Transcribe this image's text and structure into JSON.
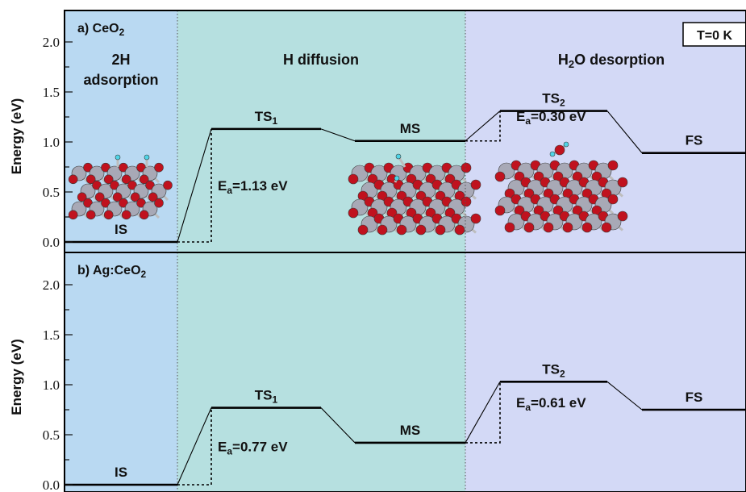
{
  "chart_data": [
    {
      "type": "line",
      "panel_label": "a) CeO",
      "panel_label_sub": "2",
      "ylabel": "Energy (eV)",
      "ylim": [
        0,
        2.15
      ],
      "yticks": [
        0.0,
        0.5,
        1.0,
        1.5,
        2.0
      ],
      "ytick_labels": [
        "0.0",
        "0.5",
        "1.0",
        "1.5",
        "2.0"
      ],
      "temperature_label": "T=0 K",
      "regions": [
        {
          "label_main": "2H",
          "label_sub": "adsorption",
          "color": "#b9d9f2"
        },
        {
          "label_main": "H diffusion",
          "color": "#b6e0e0"
        },
        {
          "label_main": "H",
          "label_sub_text": "2",
          "label_tail": "O desorption",
          "color": "#d3d9f6"
        }
      ],
      "states": [
        {
          "name": "IS",
          "sub": "",
          "energy": 0.0
        },
        {
          "name": "TS",
          "sub": "1",
          "energy": 1.13
        },
        {
          "name": "MS",
          "sub": "",
          "energy": 1.01
        },
        {
          "name": "TS",
          "sub": "2",
          "energy": 1.31
        },
        {
          "name": "FS",
          "sub": "",
          "energy": 0.89
        }
      ],
      "barriers": [
        {
          "prefix": "E",
          "sub": "a",
          "text": "=1.13 eV",
          "value": 1.13
        },
        {
          "prefix": "E",
          "sub": "a",
          "text": "=0.30 eV",
          "value": 0.3
        }
      ]
    },
    {
      "type": "line",
      "panel_label": "b) Ag:CeO",
      "panel_label_sub": "2",
      "ylabel": "Energy (eV)",
      "ylim": [
        0,
        2.15
      ],
      "yticks": [
        0.0,
        0.5,
        1.0,
        1.5,
        2.0
      ],
      "ytick_labels": [
        "0.0",
        "0.5",
        "1.0",
        "1.5",
        "2.0"
      ],
      "states": [
        {
          "name": "IS",
          "sub": "",
          "energy": 0.0
        },
        {
          "name": "TS",
          "sub": "1",
          "energy": 0.77
        },
        {
          "name": "MS",
          "sub": "",
          "energy": 0.42
        },
        {
          "name": "TS",
          "sub": "2",
          "energy": 1.03
        },
        {
          "name": "FS",
          "sub": "",
          "energy": 0.75
        }
      ],
      "barriers": [
        {
          "prefix": "E",
          "sub": "a",
          "text": "=0.77 eV",
          "value": 0.77
        },
        {
          "prefix": "E",
          "sub": "a",
          "text": "=0.61 eV",
          "value": 0.61
        }
      ]
    }
  ],
  "colors": {
    "adsorption_region": "#b9d9f2",
    "diffusion_region": "#b6e0e0",
    "desorption_region": "#d3d9f6",
    "ce_atom": "#a8a9b6",
    "o_atom": "#c0121e",
    "h_atom": "#4fd4e6"
  }
}
